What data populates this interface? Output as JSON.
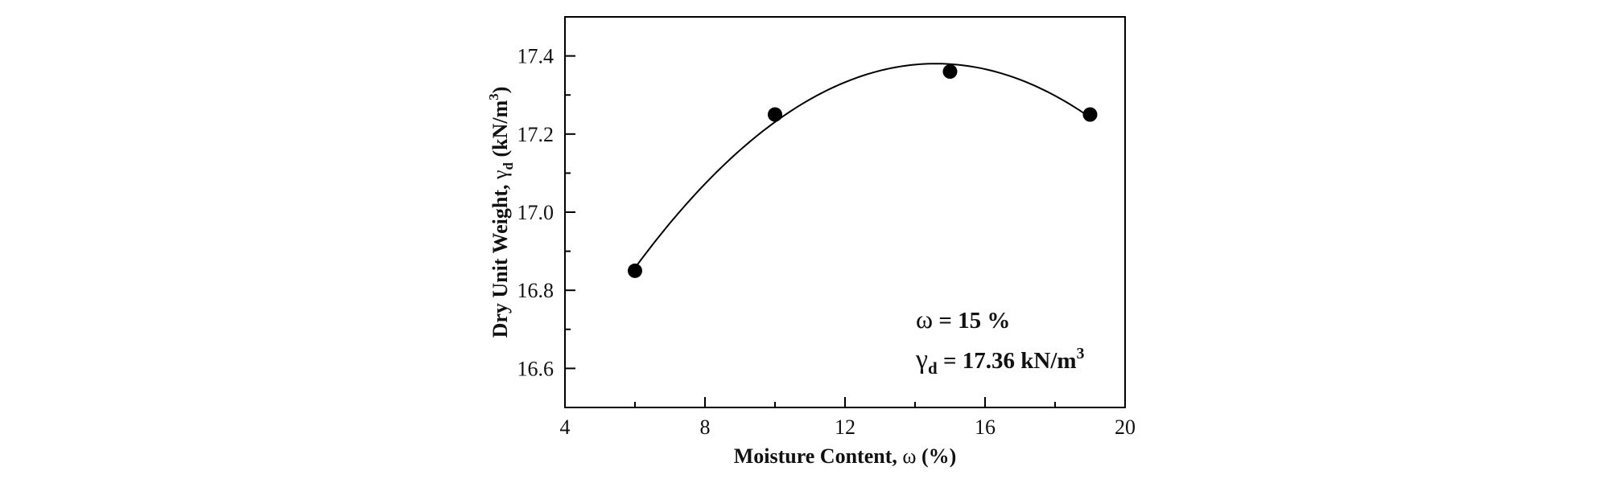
{
  "chart_data": {
    "type": "scatter",
    "x_axis": {
      "label_prefix": "Moisture Content, ",
      "symbol": "ω",
      "label_suffix": " (%)",
      "range": [
        4,
        20
      ],
      "major_ticks": [
        4,
        8,
        12,
        16,
        20
      ],
      "minor_ticks": [
        6,
        10,
        14,
        18
      ],
      "tick_labels": [
        "4",
        "8",
        "12",
        "16",
        "20"
      ]
    },
    "y_axis": {
      "label_prefix": "Dry Unit Weight, ",
      "symbol": "γ",
      "subscript": "d",
      "label_unit_open": " (kN/m",
      "label_unit_sup": "3",
      "label_unit_close": ")",
      "range": [
        16.5,
        17.5
      ],
      "major_ticks": [
        16.6,
        16.8,
        17.0,
        17.2,
        17.4
      ],
      "minor_ticks": [
        16.7,
        16.9,
        17.1,
        17.3
      ],
      "tick_labels": [
        "16.6",
        "16.8",
        "17.0",
        "17.2",
        "17.4"
      ]
    },
    "series": [
      {
        "marker": "filled-circle",
        "points": [
          {
            "x": 6,
            "y": 16.85
          },
          {
            "x": 10,
            "y": 17.25
          },
          {
            "x": 15,
            "y": 17.36
          },
          {
            "x": 19,
            "y": 17.25
          }
        ]
      }
    ],
    "fit_curve": {
      "type": "quadratic",
      "x_range": [
        6,
        19
      ],
      "color": "#000000"
    },
    "annotations": {
      "optimum_moisture": {
        "symbol": "ω",
        "text": " = 15 %"
      },
      "max_dry_unit_weight": {
        "symbol": "γ",
        "subscript": "d",
        "text": " = 17.36 kN/m",
        "sup": "3"
      }
    },
    "grid": false,
    "legend": "none"
  }
}
